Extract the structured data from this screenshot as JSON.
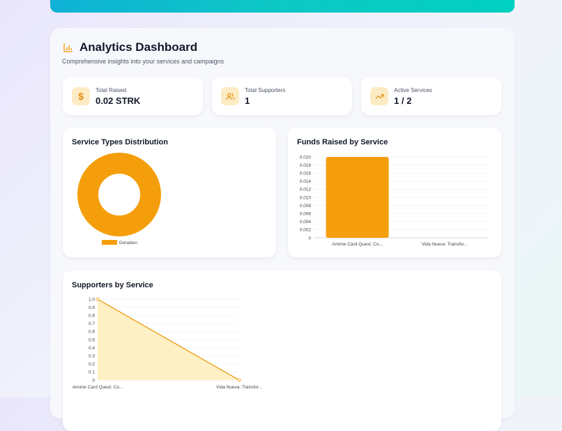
{
  "header": {
    "title": "Analytics Dashboard",
    "subtitle": "Comprehensive insights into your services and campaigns",
    "icon": "bar-chart-icon"
  },
  "stats": [
    {
      "label": "Total Raised",
      "value": "0.02 STRK",
      "icon": "dollar-icon"
    },
    {
      "label": "Total Supporters",
      "value": "1",
      "icon": "users-icon"
    },
    {
      "label": "Active Services",
      "value": "1 / 2",
      "icon": "trending-up-icon"
    }
  ],
  "colors": {
    "accent": "#f59e0b",
    "banner_start": "#0fb2d6",
    "banner_end": "#00d0c0"
  },
  "chart_data": [
    {
      "type": "pie",
      "title": "Service Types Distribution",
      "categories": [
        "Donation"
      ],
      "values": [
        1
      ],
      "donut": true,
      "legend": "bottom"
    },
    {
      "type": "bar",
      "title": "Funds Raised by Service",
      "categories": [
        "Amime Card Quest: Co...",
        "Vida Nueva: Transfor..."
      ],
      "values": [
        0.02,
        0
      ],
      "ylim": [
        0,
        0.02
      ],
      "yticks": [
        "0",
        "0.002",
        "0.004",
        "0.006",
        "0.008",
        "0.010",
        "0.012",
        "0.014",
        "0.016",
        "0.018",
        "0.020"
      ],
      "grid": true
    },
    {
      "type": "area",
      "title": "Supporters by Service",
      "categories": [
        "Amime Card Quest: Co...",
        "Vida Nueva: Transfor..."
      ],
      "values": [
        1,
        0
      ],
      "ylim": [
        0,
        1
      ],
      "yticks": [
        "0",
        "0.1",
        "0.2",
        "0.3",
        "0.4",
        "0.5",
        "0.6",
        "0.7",
        "0.8",
        "0.9",
        "1.0"
      ],
      "grid": true
    }
  ]
}
